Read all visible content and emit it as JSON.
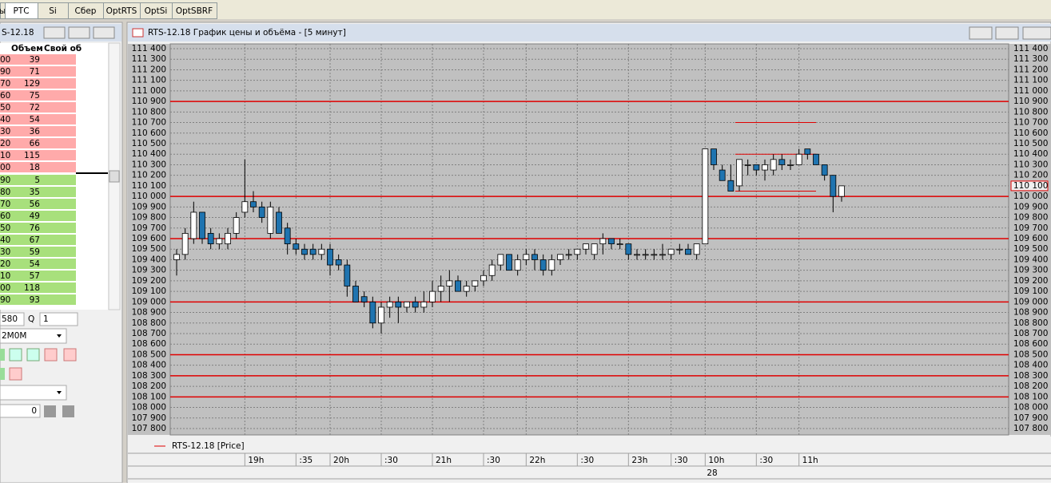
{
  "tabs": [
    "ы",
    "РТС",
    "Si",
    "Сбер",
    "OptRTS",
    "OptSi",
    "OptSBRF"
  ],
  "order_book": {
    "title": "S-12.18",
    "columns": [
      "Объем",
      "Свой об"
    ],
    "asks": [
      {
        "price": "00",
        "volume": 39
      },
      {
        "price": "90",
        "volume": 71
      },
      {
        "price": "70",
        "volume": 129
      },
      {
        "price": "60",
        "volume": 75
      },
      {
        "price": "50",
        "volume": 72
      },
      {
        "price": "40",
        "volume": 54
      },
      {
        "price": "30",
        "volume": 36
      },
      {
        "price": "20",
        "volume": 66
      },
      {
        "price": "10",
        "volume": 115
      },
      {
        "price": "00",
        "volume": 18
      }
    ],
    "bids": [
      {
        "price": "90",
        "volume": 5
      },
      {
        "price": "80",
        "volume": 35
      },
      {
        "price": "70",
        "volume": 56
      },
      {
        "price": "60",
        "volume": 49
      },
      {
        "price": "50",
        "volume": 76
      },
      {
        "price": "40",
        "volume": 67
      },
      {
        "price": "30",
        "volume": 59
      },
      {
        "price": "20",
        "volume": 54
      },
      {
        "price": "10",
        "volume": 57
      },
      {
        "price": "00",
        "volume": 118
      },
      {
        "price": "90",
        "volume": 93
      }
    ]
  },
  "order_form": {
    "price": "580",
    "qty_label": "Q",
    "qty": "1",
    "account": "2M0M",
    "amount": "0"
  },
  "chart_window": {
    "title": "RTS-12.18 График цены и объёма - [5 минут]",
    "legend": "RTS-12.18 [Price]",
    "date": "28"
  },
  "chart_data": {
    "type": "candlestick",
    "up_color": "#ffffff",
    "down_color": "#1f74b0",
    "level_color": "#e00000",
    "open": [
      109400,
      109450,
      109600,
      109850,
      109650,
      109550,
      109550,
      109650,
      109850,
      109950,
      109900,
      109650,
      109850,
      109700,
      109550,
      109500,
      109500,
      109450,
      109500,
      109400,
      109350,
      109150,
      109050,
      109000,
      108800,
      108950,
      109000,
      108950,
      109000,
      108950,
      109000,
      109100,
      109150,
      109200,
      109100,
      109150,
      109200,
      109250,
      109350,
      109450,
      109300,
      109400,
      109450,
      109400,
      109300,
      109400,
      109450,
      109450,
      109500,
      109450,
      109550,
      109600,
      109550,
      109550,
      109450,
      109450,
      109450,
      109450,
      109450,
      109500,
      109500,
      109450,
      109550,
      110450,
      110250,
      110150,
      110100,
      110300,
      110300,
      110250,
      110250,
      110350,
      110300,
      110300,
      110450,
      110400,
      110300,
      110200,
      110000
    ],
    "high": [
      109500,
      109700,
      109950,
      109850,
      109700,
      109650,
      109700,
      109850,
      110350,
      110050,
      109950,
      109950,
      109900,
      109750,
      109600,
      109550,
      109550,
      109550,
      109550,
      109450,
      109400,
      109200,
      109100,
      109050,
      109000,
      109050,
      109050,
      109000,
      109050,
      109100,
      109200,
      109250,
      109300,
      109250,
      109200,
      109200,
      109300,
      109400,
      109450,
      109450,
      109450,
      109500,
      109500,
      109450,
      109450,
      109450,
      109500,
      109500,
      109550,
      109550,
      109650,
      109600,
      109600,
      109550,
      109500,
      109500,
      109500,
      109550,
      109500,
      109550,
      109550,
      109550,
      110450,
      110450,
      110300,
      110300,
      110350,
      110350,
      110300,
      110350,
      110400,
      110400,
      110350,
      110450,
      110450,
      110400,
      110300,
      110200,
      110100
    ],
    "low": [
      109250,
      109400,
      109550,
      109550,
      109500,
      109500,
      109500,
      109600,
      109800,
      109850,
      109750,
      109600,
      109650,
      109450,
      109450,
      109400,
      109400,
      109400,
      109250,
      109300,
      109050,
      109000,
      108950,
      108750,
      108700,
      108850,
      108800,
      108900,
      108900,
      108900,
      108950,
      109000,
      109000,
      109100,
      109050,
      109100,
      109150,
      109200,
      109300,
      109300,
      109250,
      109350,
      109300,
      109250,
      109250,
      109350,
      109400,
      109400,
      109450,
      109400,
      109450,
      109500,
      109500,
      109400,
      109400,
      109400,
      109400,
      109400,
      109400,
      109450,
      109450,
      109400,
      109550,
      110250,
      110150,
      110050,
      110050,
      110200,
      110200,
      110150,
      110200,
      110250,
      110250,
      110300,
      110350,
      110300,
      110150,
      109850,
      109950
    ],
    "close": [
      109450,
      109650,
      109850,
      109600,
      109550,
      109600,
      109650,
      109800,
      109950,
      109900,
      109800,
      109900,
      109650,
      109550,
      109500,
      109450,
      109450,
      109500,
      109350,
      109350,
      109150,
      109000,
      109000,
      108800,
      108950,
      109000,
      108950,
      109000,
      108950,
      109000,
      109100,
      109150,
      109200,
      109100,
      109150,
      109200,
      109250,
      109350,
      109450,
      109300,
      109400,
      109450,
      109400,
      109300,
      109400,
      109450,
      109450,
      109500,
      109550,
      109550,
      109600,
      109550,
      109550,
      109450,
      109450,
      109450,
      109450,
      109450,
      109500,
      109500,
      109450,
      109550,
      110450,
      110300,
      110150,
      110050,
      110350,
      110300,
      110250,
      110300,
      110350,
      110300,
      110300,
      110400,
      110400,
      110300,
      110200,
      110000,
      110100
    ],
    "last_price": {
      "value": 110100,
      "label": "110 100"
    },
    "levels": [
      110900,
      110000,
      109600,
      109000,
      108500,
      108300,
      108100
    ],
    "short_levels": [
      110700,
      110400,
      110050
    ],
    "xticks": [
      {
        "value": 8,
        "label": "19h"
      },
      {
        "value": 14,
        "label": ":35"
      },
      {
        "value": 18,
        "label": "20h"
      },
      {
        "value": 24,
        "label": ":30"
      },
      {
        "value": 30,
        "label": "21h"
      },
      {
        "value": 36,
        "label": ":30"
      },
      {
        "value": 41,
        "label": "22h"
      },
      {
        "value": 47,
        "label": ":30"
      },
      {
        "value": 53,
        "label": "23h"
      },
      {
        "value": 58,
        "label": ":30"
      },
      {
        "value": 62,
        "label": "10h"
      },
      {
        "value": 68,
        "label": ":30"
      },
      {
        "value": 73,
        "label": "11h"
      }
    ],
    "ylim": [
      107800,
      111400
    ],
    "yticks": [
      {
        "value": 107800,
        "label": "107 800"
      },
      {
        "value": 107900,
        "label": "107 900"
      },
      {
        "value": 108000,
        "label": "108 000"
      },
      {
        "value": 108100,
        "label": "108 100"
      },
      {
        "value": 108200,
        "label": "108 200"
      },
      {
        "value": 108300,
        "label": "108 300"
      },
      {
        "value": 108400,
        "label": "108 400"
      },
      {
        "value": 108500,
        "label": "108 500"
      },
      {
        "value": 108600,
        "label": "108 600"
      },
      {
        "value": 108700,
        "label": "108 700"
      },
      {
        "value": 108800,
        "label": "108 800"
      },
      {
        "value": 108900,
        "label": "108 900"
      },
      {
        "value": 109000,
        "label": "109 000"
      },
      {
        "value": 109100,
        "label": "109 100"
      },
      {
        "value": 109200,
        "label": "109 200"
      },
      {
        "value": 109300,
        "label": "109 300"
      },
      {
        "value": 109400,
        "label": "109 400"
      },
      {
        "value": 109500,
        "label": "109 500"
      },
      {
        "value": 109600,
        "label": "109 600"
      },
      {
        "value": 109700,
        "label": "109 700"
      },
      {
        "value": 109800,
        "label": "109 800"
      },
      {
        "value": 109900,
        "label": "109 900"
      },
      {
        "value": 110000,
        "label": "110 000"
      },
      {
        "value": 110100,
        "label": "110 100"
      },
      {
        "value": 110200,
        "label": "110 200"
      },
      {
        "value": 110300,
        "label": "110 300"
      },
      {
        "value": 110400,
        "label": "110 400"
      },
      {
        "value": 110500,
        "label": "110 500"
      },
      {
        "value": 110600,
        "label": "110 600"
      },
      {
        "value": 110700,
        "label": "110 700"
      },
      {
        "value": 110800,
        "label": "110 800"
      },
      {
        "value": 110900,
        "label": "110 900"
      },
      {
        "value": 111000,
        "label": "111 000"
      },
      {
        "value": 111100,
        "label": "111 100"
      },
      {
        "value": 111200,
        "label": "111 200"
      },
      {
        "value": 111300,
        "label": "111 300"
      },
      {
        "value": 111400,
        "label": "111 400"
      }
    ],
    "grid": true
  }
}
